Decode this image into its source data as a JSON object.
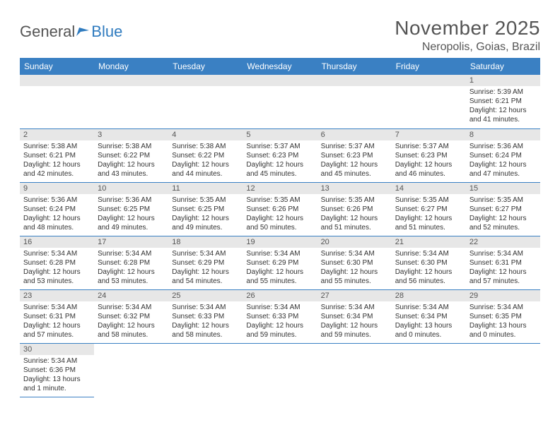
{
  "logo": {
    "text1": "General",
    "text2": "Blue"
  },
  "title": "November 2025",
  "location": "Neropolis, Goias, Brazil",
  "day_headers": [
    "Sunday",
    "Monday",
    "Tuesday",
    "Wednesday",
    "Thursday",
    "Friday",
    "Saturday"
  ],
  "colors": {
    "header_bg": "#3a80c3",
    "header_text": "#ffffff",
    "daynum_bg": "#e7e7e7",
    "border": "#3a80c3",
    "text": "#333333",
    "title_text": "#555555"
  },
  "weeks": [
    [
      null,
      null,
      null,
      null,
      null,
      null,
      {
        "n": "1",
        "sr": "Sunrise: 5:39 AM",
        "ss": "Sunset: 6:21 PM",
        "dl": "Daylight: 12 hours and 41 minutes."
      }
    ],
    [
      {
        "n": "2",
        "sr": "Sunrise: 5:38 AM",
        "ss": "Sunset: 6:21 PM",
        "dl": "Daylight: 12 hours and 42 minutes."
      },
      {
        "n": "3",
        "sr": "Sunrise: 5:38 AM",
        "ss": "Sunset: 6:22 PM",
        "dl": "Daylight: 12 hours and 43 minutes."
      },
      {
        "n": "4",
        "sr": "Sunrise: 5:38 AM",
        "ss": "Sunset: 6:22 PM",
        "dl": "Daylight: 12 hours and 44 minutes."
      },
      {
        "n": "5",
        "sr": "Sunrise: 5:37 AM",
        "ss": "Sunset: 6:23 PM",
        "dl": "Daylight: 12 hours and 45 minutes."
      },
      {
        "n": "6",
        "sr": "Sunrise: 5:37 AM",
        "ss": "Sunset: 6:23 PM",
        "dl": "Daylight: 12 hours and 45 minutes."
      },
      {
        "n": "7",
        "sr": "Sunrise: 5:37 AM",
        "ss": "Sunset: 6:23 PM",
        "dl": "Daylight: 12 hours and 46 minutes."
      },
      {
        "n": "8",
        "sr": "Sunrise: 5:36 AM",
        "ss": "Sunset: 6:24 PM",
        "dl": "Daylight: 12 hours and 47 minutes."
      }
    ],
    [
      {
        "n": "9",
        "sr": "Sunrise: 5:36 AM",
        "ss": "Sunset: 6:24 PM",
        "dl": "Daylight: 12 hours and 48 minutes."
      },
      {
        "n": "10",
        "sr": "Sunrise: 5:36 AM",
        "ss": "Sunset: 6:25 PM",
        "dl": "Daylight: 12 hours and 49 minutes."
      },
      {
        "n": "11",
        "sr": "Sunrise: 5:35 AM",
        "ss": "Sunset: 6:25 PM",
        "dl": "Daylight: 12 hours and 49 minutes."
      },
      {
        "n": "12",
        "sr": "Sunrise: 5:35 AM",
        "ss": "Sunset: 6:26 PM",
        "dl": "Daylight: 12 hours and 50 minutes."
      },
      {
        "n": "13",
        "sr": "Sunrise: 5:35 AM",
        "ss": "Sunset: 6:26 PM",
        "dl": "Daylight: 12 hours and 51 minutes."
      },
      {
        "n": "14",
        "sr": "Sunrise: 5:35 AM",
        "ss": "Sunset: 6:27 PM",
        "dl": "Daylight: 12 hours and 51 minutes."
      },
      {
        "n": "15",
        "sr": "Sunrise: 5:35 AM",
        "ss": "Sunset: 6:27 PM",
        "dl": "Daylight: 12 hours and 52 minutes."
      }
    ],
    [
      {
        "n": "16",
        "sr": "Sunrise: 5:34 AM",
        "ss": "Sunset: 6:28 PM",
        "dl": "Daylight: 12 hours and 53 minutes."
      },
      {
        "n": "17",
        "sr": "Sunrise: 5:34 AM",
        "ss": "Sunset: 6:28 PM",
        "dl": "Daylight: 12 hours and 53 minutes."
      },
      {
        "n": "18",
        "sr": "Sunrise: 5:34 AM",
        "ss": "Sunset: 6:29 PM",
        "dl": "Daylight: 12 hours and 54 minutes."
      },
      {
        "n": "19",
        "sr": "Sunrise: 5:34 AM",
        "ss": "Sunset: 6:29 PM",
        "dl": "Daylight: 12 hours and 55 minutes."
      },
      {
        "n": "20",
        "sr": "Sunrise: 5:34 AM",
        "ss": "Sunset: 6:30 PM",
        "dl": "Daylight: 12 hours and 55 minutes."
      },
      {
        "n": "21",
        "sr": "Sunrise: 5:34 AM",
        "ss": "Sunset: 6:30 PM",
        "dl": "Daylight: 12 hours and 56 minutes."
      },
      {
        "n": "22",
        "sr": "Sunrise: 5:34 AM",
        "ss": "Sunset: 6:31 PM",
        "dl": "Daylight: 12 hours and 57 minutes."
      }
    ],
    [
      {
        "n": "23",
        "sr": "Sunrise: 5:34 AM",
        "ss": "Sunset: 6:31 PM",
        "dl": "Daylight: 12 hours and 57 minutes."
      },
      {
        "n": "24",
        "sr": "Sunrise: 5:34 AM",
        "ss": "Sunset: 6:32 PM",
        "dl": "Daylight: 12 hours and 58 minutes."
      },
      {
        "n": "25",
        "sr": "Sunrise: 5:34 AM",
        "ss": "Sunset: 6:33 PM",
        "dl": "Daylight: 12 hours and 58 minutes."
      },
      {
        "n": "26",
        "sr": "Sunrise: 5:34 AM",
        "ss": "Sunset: 6:33 PM",
        "dl": "Daylight: 12 hours and 59 minutes."
      },
      {
        "n": "27",
        "sr": "Sunrise: 5:34 AM",
        "ss": "Sunset: 6:34 PM",
        "dl": "Daylight: 12 hours and 59 minutes."
      },
      {
        "n": "28",
        "sr": "Sunrise: 5:34 AM",
        "ss": "Sunset: 6:34 PM",
        "dl": "Daylight: 13 hours and 0 minutes."
      },
      {
        "n": "29",
        "sr": "Sunrise: 5:34 AM",
        "ss": "Sunset: 6:35 PM",
        "dl": "Daylight: 13 hours and 0 minutes."
      }
    ],
    [
      {
        "n": "30",
        "sr": "Sunrise: 5:34 AM",
        "ss": "Sunset: 6:36 PM",
        "dl": "Daylight: 13 hours and 1 minute."
      },
      null,
      null,
      null,
      null,
      null,
      null
    ]
  ]
}
